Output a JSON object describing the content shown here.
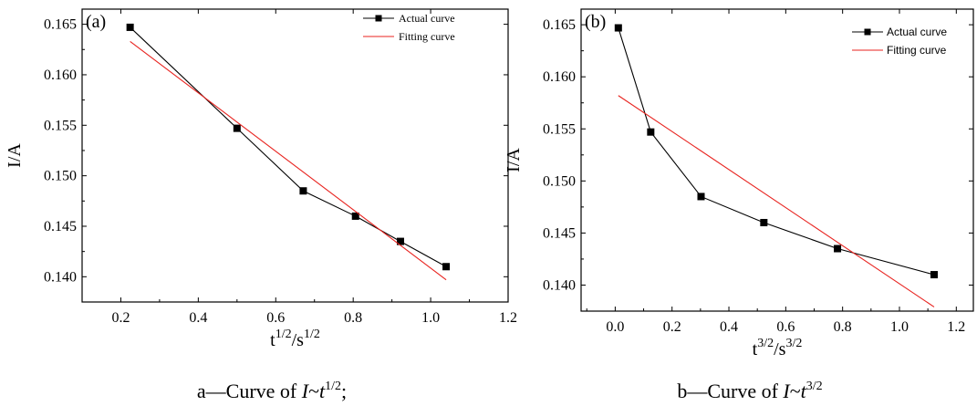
{
  "figure": {
    "captions": [
      {
        "prefix": "a—Curve of ",
        "var": "I",
        "tilde": "~",
        "t": "t",
        "exp": "1/2",
        "suffix": ";"
      },
      {
        "prefix": "b—Curve of ",
        "var": "I",
        "tilde": "~",
        "t": "t",
        "exp": "3/2",
        "suffix": ""
      }
    ]
  },
  "chart_data": [
    {
      "type": "line",
      "panel_label": "(a)",
      "xlabel": {
        "base": "t",
        "num_exp": "1/2",
        "sep": "/s",
        "den_exp": "1/2"
      },
      "ylabel": "I/A",
      "xlim": [
        0.1,
        1.2
      ],
      "ylim": [
        0.1375,
        0.1665
      ],
      "xticks": [
        0.2,
        0.4,
        0.6,
        0.8,
        1.0,
        1.2
      ],
      "xtick_labels": [
        "0.2",
        "0.4",
        "0.6",
        "0.8",
        "1.0",
        "1.2"
      ],
      "yticks": [
        0.14,
        0.145,
        0.15,
        0.155,
        0.16,
        0.165
      ],
      "ytick_labels": [
        "0.140",
        "0.145",
        "0.150",
        "0.155",
        "0.160",
        "0.165"
      ],
      "legend_position": "top-right",
      "legend_font": "serif",
      "series": [
        {
          "name": "Actual curve",
          "style": "line-square",
          "color": "#000000",
          "x": [
            0.224,
            0.5,
            0.671,
            0.806,
            0.922,
            1.04
          ],
          "y": [
            0.1647,
            0.1547,
            0.1485,
            0.146,
            0.1435,
            0.141
          ]
        },
        {
          "name": "Fitting curve",
          "style": "line",
          "color": "#e8231f",
          "x": [
            0.224,
            1.04
          ],
          "y": [
            0.1633,
            0.1397
          ]
        }
      ]
    },
    {
      "type": "line",
      "panel_label": "(b)",
      "xlabel": {
        "base": "t",
        "num_exp": "3/2",
        "sep": "/s",
        "den_exp": "3/2"
      },
      "ylabel": "I/A",
      "xlim": [
        -0.12,
        1.26
      ],
      "ylim": [
        0.1375,
        0.1665
      ],
      "xticks": [
        0.0,
        0.2,
        0.4,
        0.6,
        0.8,
        1.0,
        1.2
      ],
      "xtick_labels": [
        "0.0",
        "0.2",
        "0.4",
        "0.6",
        "0.8",
        "1.0",
        "1.2"
      ],
      "yticks": [
        0.14,
        0.145,
        0.15,
        0.155,
        0.16,
        0.165
      ],
      "ytick_labels": [
        "0.140",
        "0.145",
        "0.150",
        "0.155",
        "0.160",
        "0.165"
      ],
      "legend_position": "top-right",
      "legend_font": "sans",
      "series": [
        {
          "name": "Actual curve",
          "style": "line-square",
          "color": "#000000",
          "x": [
            0.011,
            0.125,
            0.302,
            0.523,
            0.782,
            1.122
          ],
          "y": [
            0.1647,
            0.1547,
            0.1485,
            0.146,
            0.1435,
            0.141
          ]
        },
        {
          "name": "Fitting curve",
          "style": "line",
          "color": "#e8231f",
          "x": [
            0.011,
            1.122
          ],
          "y": [
            0.1582,
            0.1379
          ]
        }
      ]
    }
  ]
}
